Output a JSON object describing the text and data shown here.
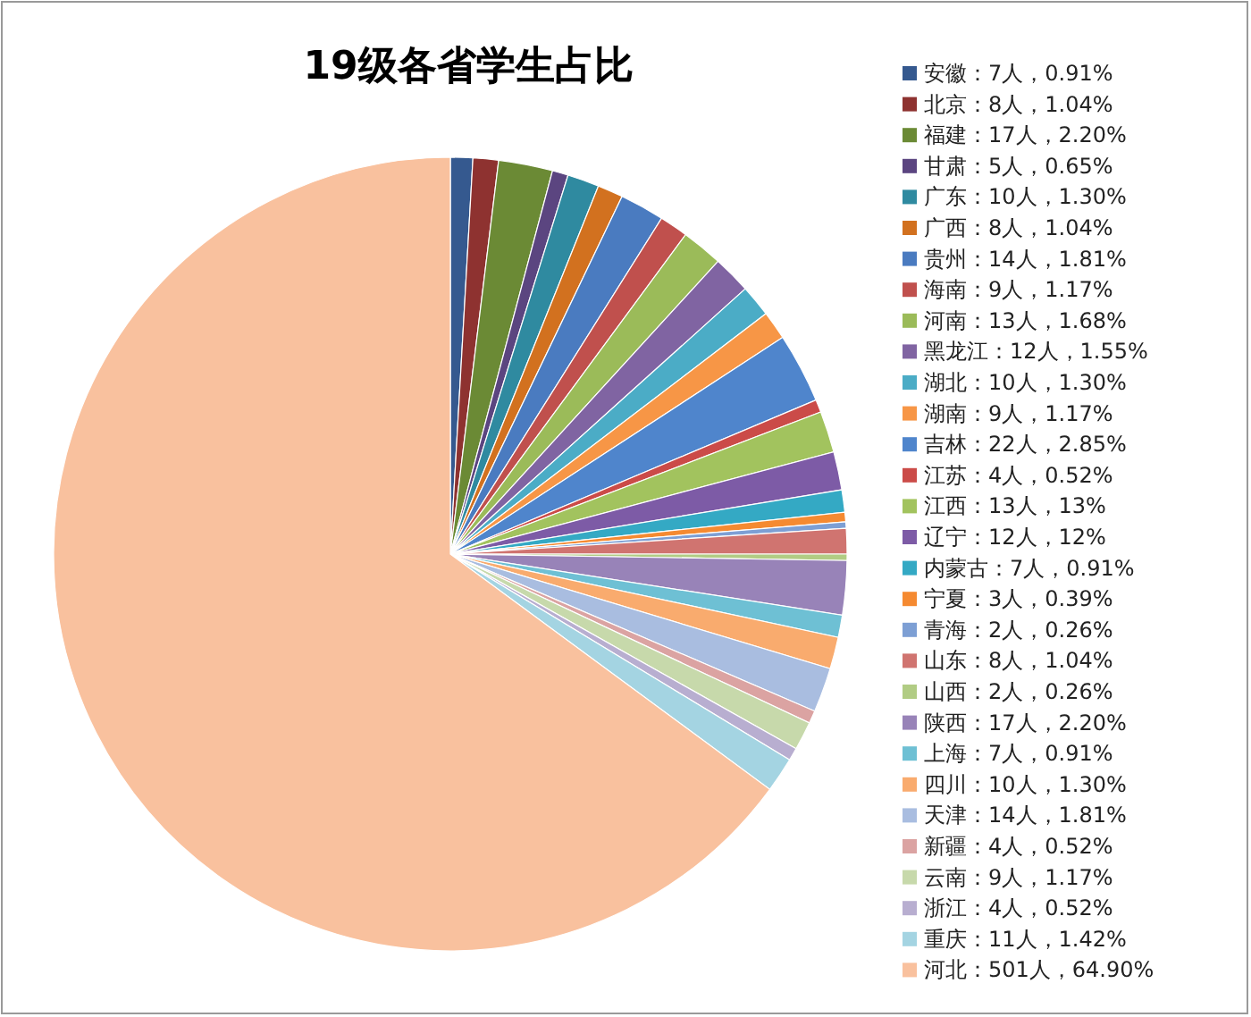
{
  "chart_data": {
    "type": "pie",
    "title": "19级各省学生占比",
    "legend": "right",
    "categories": [
      "安徽：7人，0.91%",
      "北京：8人，1.04%",
      "福建：17人，2.20%",
      "甘肃：5人，0.65%",
      "广东：10人，1.30%",
      "广西：8人，1.04%",
      "贵州：14人，1.81%",
      "海南：9人，1.17%",
      "河南：13人，1.68%",
      "黑龙江：12人，1.55%",
      "湖北：10人，1.30%",
      "湖南：9人，1.17%",
      "吉林：22人，2.85%",
      "江苏：4人，0.52%",
      "江西：13人，13%",
      "辽宁：12人，12%",
      "内蒙古：7人，0.91%",
      "宁夏：3人，0.39%",
      "青海：2人，0.26%",
      "山东：8人，1.04%",
      "山西：2人，0.26%",
      "陕西：17人，2.20%",
      "上海：7人，0.91%",
      "四川：10人，1.30%",
      "天津：14人，1.81%",
      "新疆：4人，0.52%",
      "云南：9人，1.17%",
      "浙江：4人，0.52%",
      "重庆：11人，1.42%",
      "河北：501人，64.90%"
    ],
    "values": [
      7,
      8,
      17,
      5,
      10,
      8,
      14,
      9,
      13,
      12,
      10,
      9,
      22,
      4,
      13,
      12,
      7,
      3,
      2,
      8,
      2,
      17,
      7,
      10,
      14,
      4,
      9,
      4,
      11,
      501
    ],
    "colors": [
      "#35598f",
      "#8e3230",
      "#6b8a35",
      "#5b4580",
      "#2f8aa0",
      "#d2711f",
      "#4a7bc0",
      "#c0504d",
      "#9bbb59",
      "#8064a2",
      "#4bacc6",
      "#f79646",
      "#4f85cc",
      "#cb4b48",
      "#a2c35e",
      "#7d5ba6",
      "#34a9c4",
      "#f58a31",
      "#7d9fd4",
      "#d07470",
      "#b1cc84",
      "#9883b8",
      "#6ec0d4",
      "#f9ab6e",
      "#a9bde0",
      "#dba3a2",
      "#c7d9ab",
      "#b8aed0",
      "#a4d4e2",
      "#f9c19e"
    ]
  }
}
